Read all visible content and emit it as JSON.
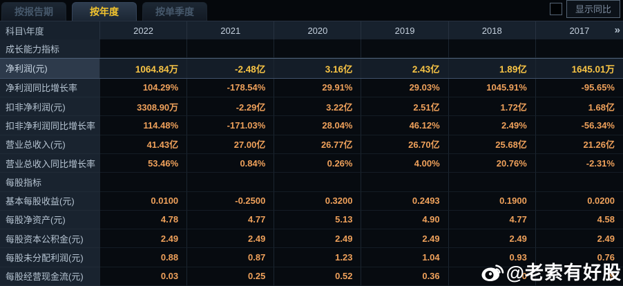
{
  "tabs": [
    {
      "name": "tab-by-report-period",
      "label": "按报告期",
      "active": false
    },
    {
      "name": "tab-by-year",
      "label": "按年度",
      "active": true
    },
    {
      "name": "tab-by-quarter",
      "label": "按单季度",
      "active": false
    }
  ],
  "controls": {
    "show_yoy_label": "显示同比",
    "yoy_checkbox_checked": false
  },
  "table": {
    "corner_label": "科目\\年度",
    "years": [
      "2022",
      "2021",
      "2020",
      "2019",
      "2018",
      "2017"
    ],
    "more_icon": "»",
    "rows": [
      {
        "type": "section",
        "label": "成长能力指标"
      },
      {
        "type": "data",
        "highlight": true,
        "label": "净利润(元)",
        "values": [
          "1064.84万",
          "-2.48亿",
          "3.16亿",
          "2.43亿",
          "1.89亿",
          "1645.01万"
        ]
      },
      {
        "type": "data",
        "label": "净利润同比增长率",
        "values": [
          "104.29%",
          "-178.54%",
          "29.91%",
          "29.03%",
          "1045.91%",
          "-95.65%"
        ]
      },
      {
        "type": "data",
        "label": "扣非净利润(元)",
        "values": [
          "3308.90万",
          "-2.29亿",
          "3.22亿",
          "2.51亿",
          "1.72亿",
          "1.68亿"
        ]
      },
      {
        "type": "data",
        "label": "扣非净利润同比增长率",
        "values": [
          "114.48%",
          "-171.03%",
          "28.04%",
          "46.12%",
          "2.49%",
          "-56.34%"
        ]
      },
      {
        "type": "data",
        "label": "营业总收入(元)",
        "values": [
          "41.43亿",
          "27.00亿",
          "26.77亿",
          "26.70亿",
          "25.68亿",
          "21.26亿"
        ]
      },
      {
        "type": "data",
        "label": "营业总收入同比增长率",
        "values": [
          "53.46%",
          "0.84%",
          "0.26%",
          "4.00%",
          "20.76%",
          "-2.31%"
        ]
      },
      {
        "type": "section",
        "label": "每股指标"
      },
      {
        "type": "data",
        "label": "基本每股收益(元)",
        "values": [
          "0.0100",
          "-0.2500",
          "0.3200",
          "0.2493",
          "0.1900",
          "0.0200"
        ]
      },
      {
        "type": "data",
        "label": "每股净资产(元)",
        "values": [
          "4.78",
          "4.77",
          "5.13",
          "4.90",
          "4.77",
          "4.58"
        ]
      },
      {
        "type": "data",
        "label": "每股资本公积金(元)",
        "values": [
          "2.49",
          "2.49",
          "2.49",
          "2.49",
          "2.49",
          "2.49"
        ]
      },
      {
        "type": "data",
        "label": "每股未分配利润(元)",
        "values": [
          "0.88",
          "0.87",
          "1.23",
          "1.04",
          "0.93",
          "0.76"
        ]
      },
      {
        "type": "data",
        "label": "每股经营现金流(元)",
        "values": [
          "0.03",
          "0.25",
          "0.52",
          "0.36",
          "0",
          "9"
        ],
        "obscured_by_watermark": [
          4,
          5
        ]
      }
    ]
  },
  "watermark": {
    "icon": "weibo-logo-icon",
    "text": "@老索有好股"
  },
  "colors": {
    "accent_gold": "#f3c42e",
    "value_orange": "#efa15b",
    "highlight_value_gold": "#f8c445",
    "label_text": "#b6c4d2",
    "header_bg": "#17212d",
    "label_cell_bg": "#19232f",
    "highlight_row_bg": "#141d28",
    "watermark_white": "#ffffff"
  }
}
